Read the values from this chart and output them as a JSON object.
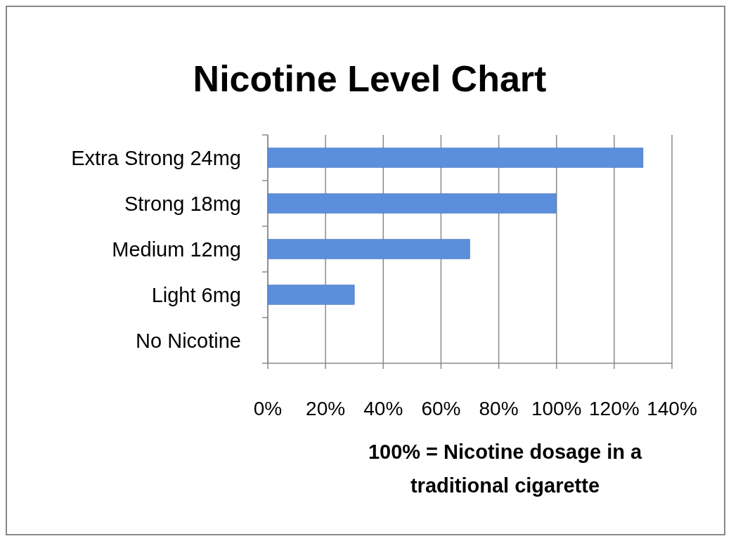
{
  "chart_data": {
    "type": "bar",
    "orientation": "horizontal",
    "title": "Nicotine Level Chart",
    "xlabel": "100% = Nicotine dosage in a traditional cigarette",
    "categories": [
      "Extra Strong 24mg",
      "Strong 18mg",
      "Medium 12mg",
      "Light 6mg",
      "No Nicotine"
    ],
    "values": [
      130,
      100,
      70,
      30,
      0
    ],
    "color": "#5b8fdc",
    "xlim": [
      0,
      140
    ],
    "xticks": [
      {
        "value": 0,
        "label": "0%"
      },
      {
        "value": 20,
        "label": "20%"
      },
      {
        "value": 40,
        "label": "40%"
      },
      {
        "value": 60,
        "label": "60%"
      },
      {
        "value": 80,
        "label": "80%"
      },
      {
        "value": 100,
        "label": "100%"
      },
      {
        "value": 120,
        "label": "120%"
      },
      {
        "value": 140,
        "label": "140%"
      }
    ],
    "grid": "x"
  }
}
